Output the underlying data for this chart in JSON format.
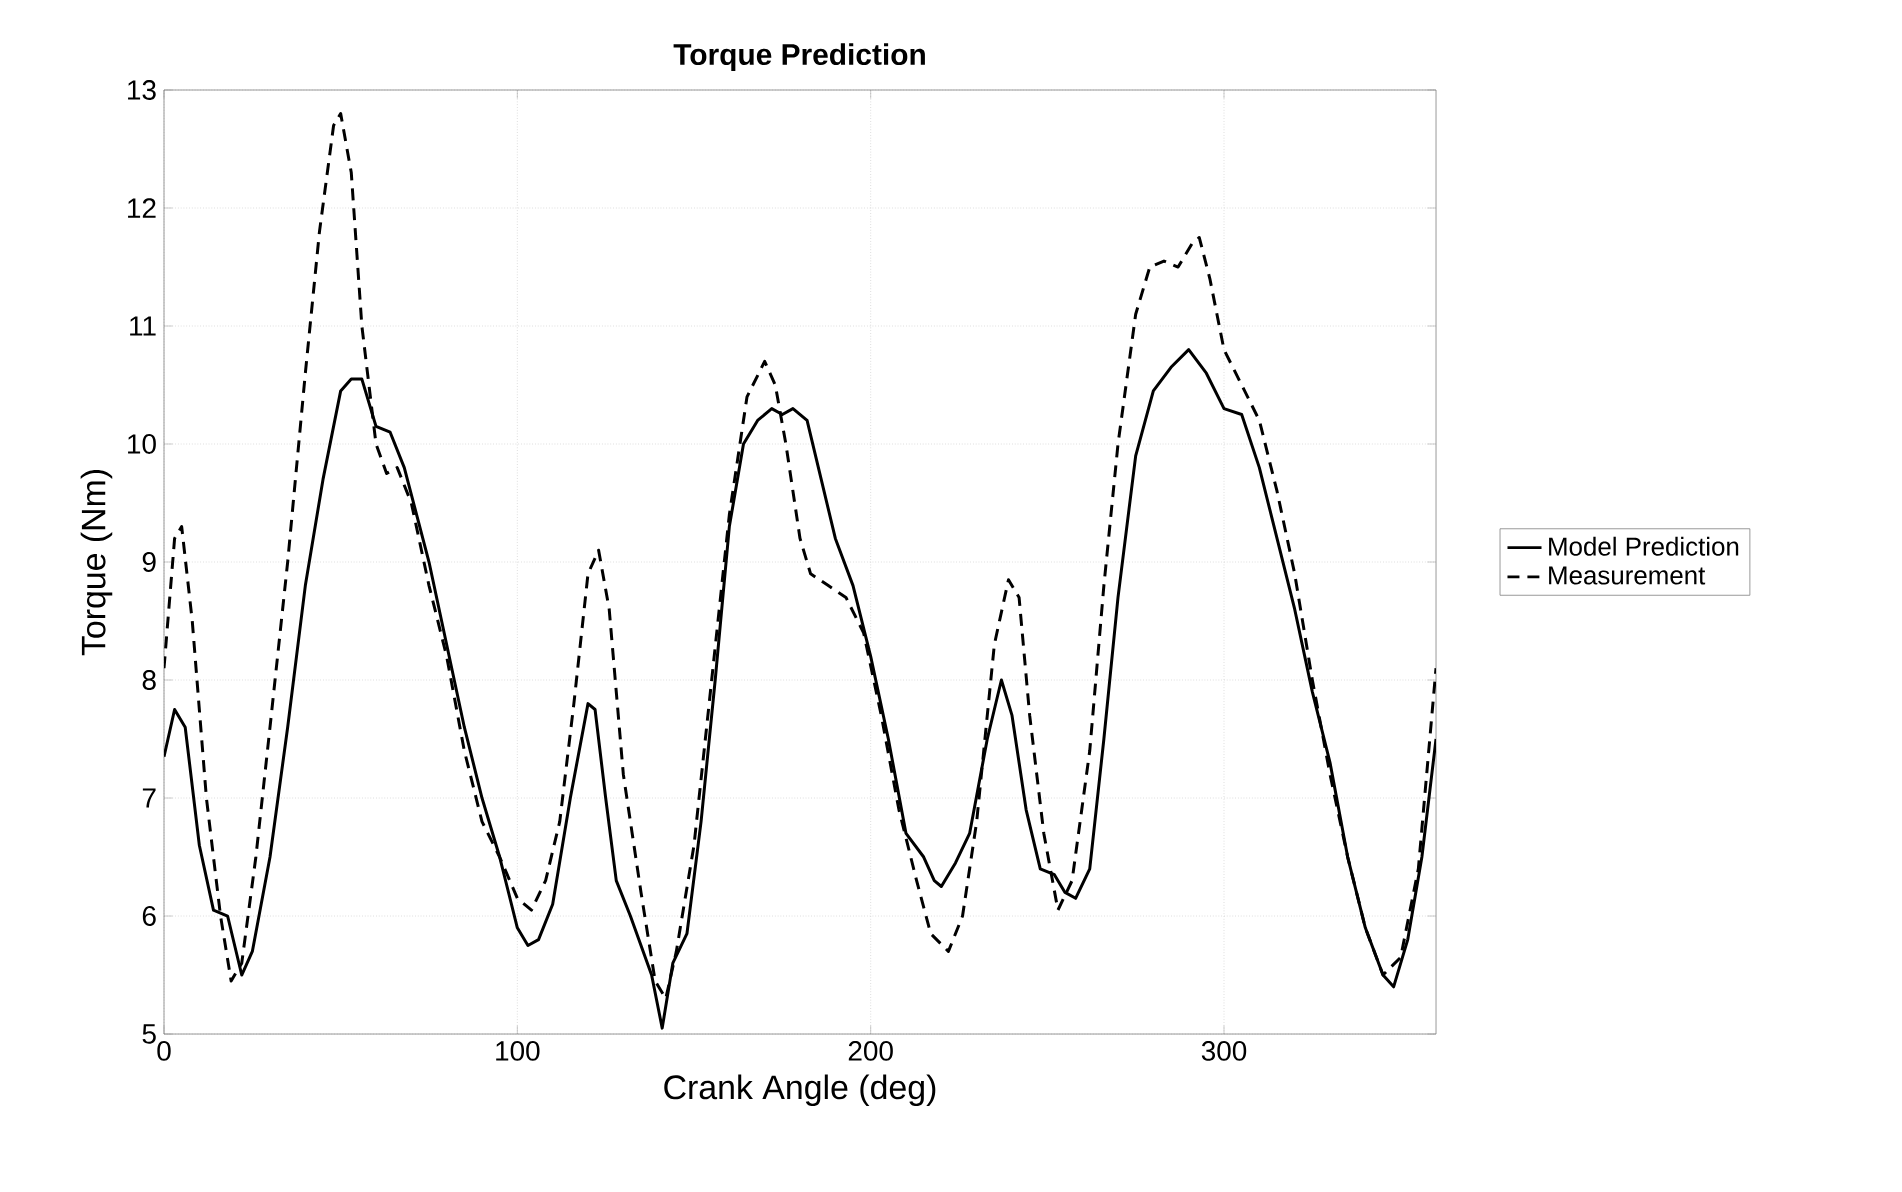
{
  "chart_data": {
    "type": "line",
    "title": "**Torque Prediction**",
    "xlabel": "Crank Angle (deg)",
    "ylabel": "Torque (Nm)",
    "xlim": [
      0,
      360
    ],
    "ylim": [
      5,
      13
    ],
    "xticks": [
      0,
      100,
      200,
      300
    ],
    "yticks": [
      5,
      6,
      7,
      8,
      9,
      10,
      11,
      12,
      13
    ],
    "grid": true,
    "legend": "right",
    "marker": "none",
    "series": [
      {
        "name": "Model Prediction",
        "color": "#000000",
        "line_style": "solid",
        "x": [
          0,
          3,
          6,
          10,
          14,
          18,
          20,
          22,
          25,
          30,
          35,
          40,
          45,
          50,
          53,
          56,
          60,
          64,
          68,
          75,
          80,
          85,
          90,
          95,
          100,
          103,
          106,
          110,
          115,
          120,
          122,
          125,
          128,
          132,
          135,
          138,
          141,
          144,
          148,
          152,
          156,
          160,
          164,
          168,
          172,
          175,
          178,
          182,
          186,
          190,
          195,
          200,
          205,
          210,
          215,
          218,
          220,
          224,
          228,
          233,
          237,
          240,
          244,
          248,
          252,
          255,
          258,
          262,
          266,
          270,
          275,
          280,
          285,
          290,
          295,
          300,
          305,
          310,
          315,
          320,
          325,
          330,
          335,
          340,
          345,
          348,
          352,
          356,
          360
        ],
        "values": [
          7.35,
          7.75,
          7.6,
          6.6,
          6.05,
          6.0,
          5.75,
          5.5,
          5.7,
          6.5,
          7.6,
          8.8,
          9.7,
          10.45,
          10.55,
          10.55,
          10.15,
          10.1,
          9.8,
          9.0,
          8.3,
          7.6,
          7.0,
          6.5,
          5.9,
          5.75,
          5.8,
          6.1,
          7.0,
          7.8,
          7.75,
          7.0,
          6.3,
          6.0,
          5.75,
          5.5,
          5.05,
          5.6,
          5.85,
          6.8,
          8.0,
          9.3,
          10.0,
          10.2,
          10.3,
          10.25,
          10.3,
          10.2,
          9.7,
          9.2,
          8.8,
          8.2,
          7.5,
          6.7,
          6.5,
          6.3,
          6.25,
          6.45,
          6.7,
          7.5,
          8.0,
          7.7,
          6.9,
          6.4,
          6.35,
          6.2,
          6.15,
          6.4,
          7.5,
          8.7,
          9.9,
          10.45,
          10.65,
          10.8,
          10.6,
          10.3,
          10.25,
          9.8,
          9.2,
          8.6,
          7.9,
          7.3,
          6.5,
          5.9,
          5.5,
          5.4,
          5.8,
          6.5,
          7.5
        ]
      },
      {
        "name": "Measurement",
        "color": "#000000",
        "line_style": "dashed",
        "x": [
          0,
          3,
          5,
          8,
          12,
          16,
          19,
          22,
          26,
          30,
          35,
          40,
          44,
          48,
          50,
          53,
          56,
          60,
          63,
          66,
          70,
          75,
          80,
          85,
          90,
          95,
          100,
          104,
          108,
          112,
          116,
          120,
          123,
          126,
          130,
          135,
          139,
          142,
          145,
          150,
          155,
          160,
          165,
          170,
          173,
          176,
          180,
          183,
          188,
          193,
          198,
          203,
          208,
          213,
          217,
          222,
          226,
          230,
          235,
          239,
          242,
          245,
          249,
          253,
          257,
          262,
          266,
          270,
          275,
          279,
          283,
          287,
          291,
          293,
          296,
          300,
          305,
          310,
          315,
          320,
          325,
          330,
          335,
          340,
          345,
          350,
          355,
          360
        ],
        "values": [
          8.1,
          9.2,
          9.3,
          8.5,
          7.0,
          6.0,
          5.45,
          5.6,
          6.5,
          7.6,
          9.0,
          10.6,
          11.8,
          12.7,
          12.8,
          12.3,
          11.0,
          10.0,
          9.75,
          9.8,
          9.5,
          8.8,
          8.2,
          7.4,
          6.8,
          6.5,
          6.15,
          6.05,
          6.3,
          6.8,
          7.8,
          8.9,
          9.1,
          8.6,
          7.2,
          6.2,
          5.45,
          5.3,
          5.7,
          6.6,
          8.0,
          9.4,
          10.4,
          10.7,
          10.5,
          10.0,
          9.2,
          8.9,
          8.8,
          8.7,
          8.4,
          7.7,
          6.9,
          6.3,
          5.85,
          5.7,
          6.0,
          6.8,
          8.3,
          8.85,
          8.7,
          7.7,
          6.7,
          6.05,
          6.3,
          7.4,
          8.8,
          10.0,
          11.1,
          11.5,
          11.55,
          11.5,
          11.7,
          11.75,
          11.4,
          10.8,
          10.5,
          10.2,
          9.6,
          8.9,
          8.0,
          7.2,
          6.5,
          5.9,
          5.5,
          5.65,
          6.4,
          8.1
        ]
      }
    ]
  }
}
